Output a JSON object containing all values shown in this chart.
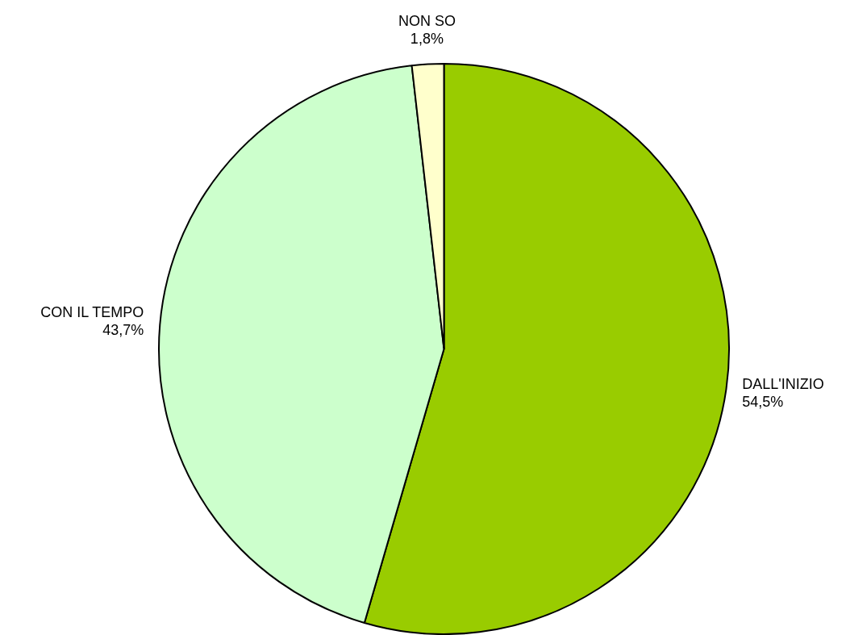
{
  "chart_data": {
    "type": "pie",
    "categories": [
      "DALL'INIZIO",
      "CON IL TEMPO",
      "NON SO"
    ],
    "values": [
      54.5,
      43.7,
      1.8
    ],
    "value_labels": [
      "54,5%",
      "43,7%",
      "1,8%"
    ],
    "colors": [
      "#99cc00",
      "#ccffcc",
      "#ffffcc"
    ],
    "legend": false
  }
}
